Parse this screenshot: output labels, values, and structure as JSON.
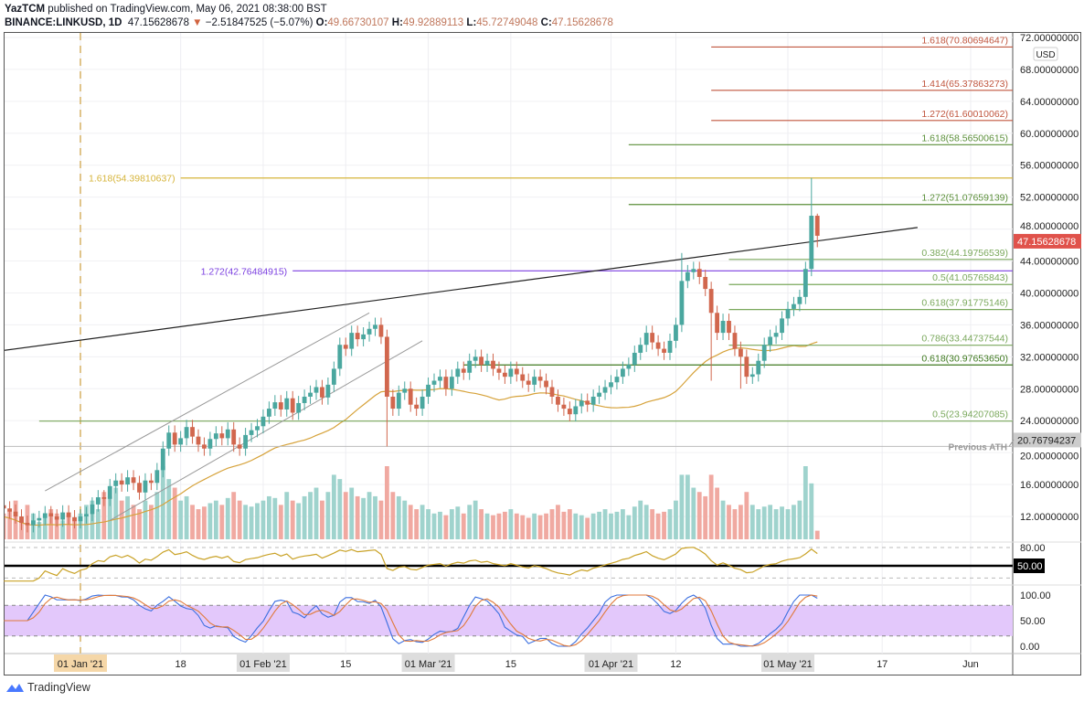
{
  "header": {
    "author": "YazTCM",
    "published": "published on TradingView.com, May 06, 2021 08:38:00 BST",
    "symbol": "BINANCE:LINKUSD, 1D",
    "last": "47.15628678",
    "change": "−2.51847525 (−5.07%)",
    "o_label": "O:",
    "o": "49.66730107",
    "h_label": "H:",
    "h": "49.92889113",
    "l_label": "L:",
    "l": "45.72749048",
    "c_label": "C:",
    "c": "47.15628678"
  },
  "currency": "USD",
  "footer": {
    "brand": "TradingView"
  },
  "colors": {
    "up": "#4aa79f",
    "down": "#d1674e",
    "ma": "#d6a23a",
    "rsi": "#c9a227",
    "stoch_k": "#3b6fe0",
    "stoch_d": "#e07a3b",
    "band": "#e3c8fb"
  },
  "chart_data": {
    "type": "candlestick",
    "title": "BINANCE:LINKUSD, 1D",
    "start_date": "2020-12-19",
    "ylim": [
      10,
      72
    ],
    "price_ticks": [
      "72.00000000",
      "68.00000000",
      "64.00000000",
      "60.00000000",
      "56.00000000",
      "52.00000000",
      "48.00000000",
      "44.00000000",
      "40.00000000",
      "36.00000000",
      "32.00000000",
      "28.00000000",
      "24.00000000",
      "20.00000000",
      "16.00000000",
      "12.00000000"
    ],
    "price_tick_values": [
      72,
      68,
      64,
      60,
      56,
      52,
      48,
      44,
      40,
      36,
      32,
      28,
      24,
      20,
      16,
      12
    ],
    "time_ticks": [
      {
        "label": "01 Jan '21",
        "day": 13,
        "highlight": "tan"
      },
      {
        "label": "18",
        "day": 30
      },
      {
        "label": "01 Feb '21",
        "day": 44,
        "highlight": "grey"
      },
      {
        "label": "15",
        "day": 58
      },
      {
        "label": "01 Mar '21",
        "day": 72,
        "highlight": "grey"
      },
      {
        "label": "15",
        "day": 86
      },
      {
        "label": "01 Apr '21",
        "day": 103,
        "highlight": "grey"
      },
      {
        "label": "12",
        "day": 114
      },
      {
        "label": "01 May '21",
        "day": 133,
        "highlight": "grey"
      },
      {
        "label": "17",
        "day": 149
      },
      {
        "label": "Jun",
        "day": 164
      }
    ],
    "close": [
      13.0,
      12.6,
      12.0,
      11.2,
      10.9,
      11.5,
      11.8,
      12.4,
      12.0,
      11.6,
      12.5,
      11.9,
      11.4,
      12.0,
      12.3,
      13.5,
      14.4,
      14.2,
      15.8,
      16.5,
      16.0,
      16.9,
      16.2,
      15.0,
      16.5,
      16.2,
      17.8,
      20.5,
      22.5,
      21.0,
      21.8,
      23.2,
      22.0,
      21.0,
      20.5,
      21.7,
      22.4,
      21.8,
      22.9,
      21.0,
      20.5,
      22.2,
      22.8,
      23.3,
      24.5,
      25.5,
      26.3,
      25.4,
      26.8,
      25.0,
      26.2,
      27.0,
      27.5,
      28.2,
      26.9,
      28.5,
      30.5,
      33.5,
      33.0,
      35.0,
      34.2,
      34.8,
      35.5,
      36.0,
      34.5,
      27.0,
      25.5,
      27.5,
      28.0,
      26.0,
      25.5,
      27.0,
      28.5,
      29.0,
      29.5,
      28.0,
      29.5,
      30.5,
      30.0,
      31.5,
      32.0,
      31.0,
      31.5,
      30.5,
      30.0,
      29.5,
      30.5,
      29.8,
      29.0,
      28.5,
      29.5,
      29.0,
      28.2,
      27.0,
      26.0,
      25.5,
      24.8,
      25.8,
      26.5,
      26.0,
      27.0,
      27.5,
      28.2,
      28.8,
      29.5,
      30.5,
      31.0,
      32.5,
      33.5,
      35.0,
      33.8,
      33.0,
      32.5,
      34.0,
      36.0,
      41.5,
      42.6,
      43.0,
      42.0,
      40.5,
      37.5,
      35.0,
      36.5,
      35.0,
      33.0,
      32.0,
      29.5,
      29.8,
      31.5,
      33.5,
      34.5,
      35.0,
      36.8,
      38.0,
      38.6,
      39.5,
      43.0,
      49.67,
      47.16
    ],
    "first_open": 13.4,
    "wick": 0.9,
    "overrides": {
      "65": {
        "l": 20.77
      },
      "115": {
        "h": 45.0
      },
      "120": {
        "l": 29.0
      },
      "125": {
        "l": 28.0
      },
      "137": {
        "h": 54.4
      },
      "138": {
        "o": 49.667,
        "h": 49.929,
        "l": 45.727
      }
    },
    "volume": [
      30,
      35,
      45,
      25,
      40,
      30,
      20,
      25,
      35,
      30,
      22,
      28,
      25,
      30,
      40,
      45,
      35,
      55,
      50,
      60,
      45,
      50,
      40,
      35,
      45,
      40,
      55,
      85,
      70,
      60,
      45,
      50,
      40,
      35,
      38,
      42,
      45,
      40,
      48,
      55,
      45,
      40,
      38,
      42,
      45,
      50,
      48,
      40,
      55,
      45,
      42,
      50,
      55,
      60,
      45,
      55,
      75,
      70,
      55,
      60,
      50,
      48,
      55,
      50,
      45,
      85,
      55,
      50,
      45,
      40,
      35,
      40,
      35,
      30,
      32,
      28,
      35,
      38,
      30,
      40,
      45,
      35,
      30,
      28,
      30,
      32,
      35,
      30,
      28,
      25,
      30,
      28,
      30,
      35,
      40,
      32,
      35,
      30,
      28,
      25,
      30,
      32,
      35,
      30,
      32,
      35,
      28,
      38,
      45,
      40,
      35,
      30,
      32,
      35,
      45,
      75,
      75,
      60,
      55,
      50,
      75,
      60,
      45,
      40,
      35,
      40,
      55,
      40,
      35,
      38,
      40,
      35,
      38,
      35,
      40,
      45,
      85,
      65,
      10
    ],
    "last_price_label": "47.15628678",
    "levels": [
      {
        "label": "1.618(70.80694647)",
        "price": 70.80694647,
        "from_day": 120,
        "color": "#c0563f",
        "side": "right"
      },
      {
        "label": "1.414(65.37863273)",
        "price": 65.37863273,
        "from_day": 120,
        "color": "#c0563f",
        "side": "right"
      },
      {
        "label": "1.272(61.60010062)",
        "price": 61.60010062,
        "from_day": 120,
        "color": "#c0563f",
        "side": "right"
      },
      {
        "label": "1.618(58.56500615)",
        "price": 58.56500615,
        "from_day": 106,
        "color": "#5b8f3a",
        "side": "right"
      },
      {
        "label": "1.272(51.07659139)",
        "price": 51.07659139,
        "from_day": 106,
        "color": "#5b8f3a",
        "side": "right"
      },
      {
        "label": "0.382(44.19756539)",
        "price": 44.19756539,
        "from_day": 123,
        "color": "#7aa85c",
        "side": "right"
      },
      {
        "label": "0.5(41.05765843)",
        "price": 41.05765843,
        "from_day": 123,
        "color": "#7aa85c",
        "side": "right"
      },
      {
        "label": "0.618(37.91775146)",
        "price": 37.91775146,
        "from_day": 123,
        "color": "#7aa85c",
        "side": "right"
      },
      {
        "label": "0.786(33.44737544)",
        "price": 33.44737544,
        "from_day": 123,
        "color": "#7aa85c",
        "side": "right"
      },
      {
        "label": "0.618(30.97653650)",
        "price": 30.9765365,
        "from_day": 78,
        "color": "#3f7a20",
        "side": "right"
      },
      {
        "label": "0.5(23.94207085)",
        "price": 23.94207085,
        "from_day": 6,
        "color": "#7aa85c",
        "side": "right"
      },
      {
        "label": "1.618(54.39810637)",
        "price": 54.39810637,
        "from_day": 30,
        "color": "#d6b43a",
        "side": "left"
      },
      {
        "label": "1.272(42.76484915)",
        "price": 42.76484915,
        "from_day": 49,
        "color": "#7b3fe0",
        "side": "left"
      }
    ],
    "previous_ath": {
      "label": "Previous ATH",
      "value": "20.76794237",
      "price": 20.76794237
    },
    "trendline": {
      "from": {
        "day": -13,
        "price": 31.5
      },
      "to": {
        "day": 155,
        "price": 48.2
      }
    },
    "channel": [
      {
        "from": {
          "day": 7,
          "price": 15.2
        },
        "to": {
          "day": 62,
          "price": 37.5
        }
      },
      {
        "from": {
          "day": 18,
          "price": 11.5
        },
        "to": {
          "day": 71,
          "price": 34.0
        }
      }
    ],
    "ma_period": 20,
    "rsi": {
      "ticks": [
        "80.00"
      ],
      "badge": "50.00",
      "levels": [
        80,
        50,
        30
      ]
    },
    "stoch": {
      "ticks": [
        "100.00",
        "50.00",
        "0.00"
      ],
      "band": [
        20,
        80
      ]
    }
  }
}
